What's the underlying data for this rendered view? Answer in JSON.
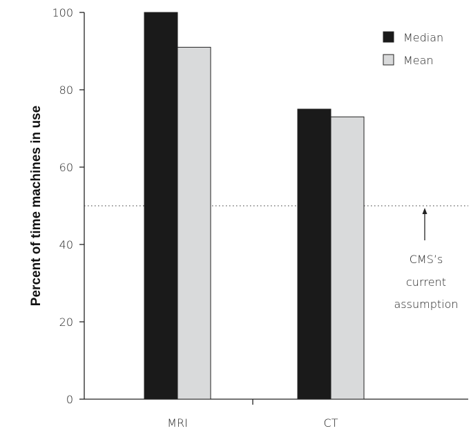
{
  "chart_data": {
    "type": "bar",
    "title": "",
    "xlabel": "",
    "ylabel": "Percent of time machines in use",
    "ylim": [
      0,
      100
    ],
    "yticks": [
      0,
      20,
      40,
      60,
      80,
      100
    ],
    "categories": [
      "MRI",
      "CT"
    ],
    "series": [
      {
        "name": "Median",
        "color": "#1a1a1a",
        "values": [
          100,
          75
        ]
      },
      {
        "name": "Mean",
        "color": "#d9dadb",
        "values": [
          91,
          73
        ]
      }
    ],
    "reference_line": {
      "value": 50,
      "style": "dotted"
    },
    "annotation": {
      "lines": [
        "CMS’s",
        "current",
        "assumption"
      ]
    },
    "legend_position": "top-right",
    "grid": false
  }
}
